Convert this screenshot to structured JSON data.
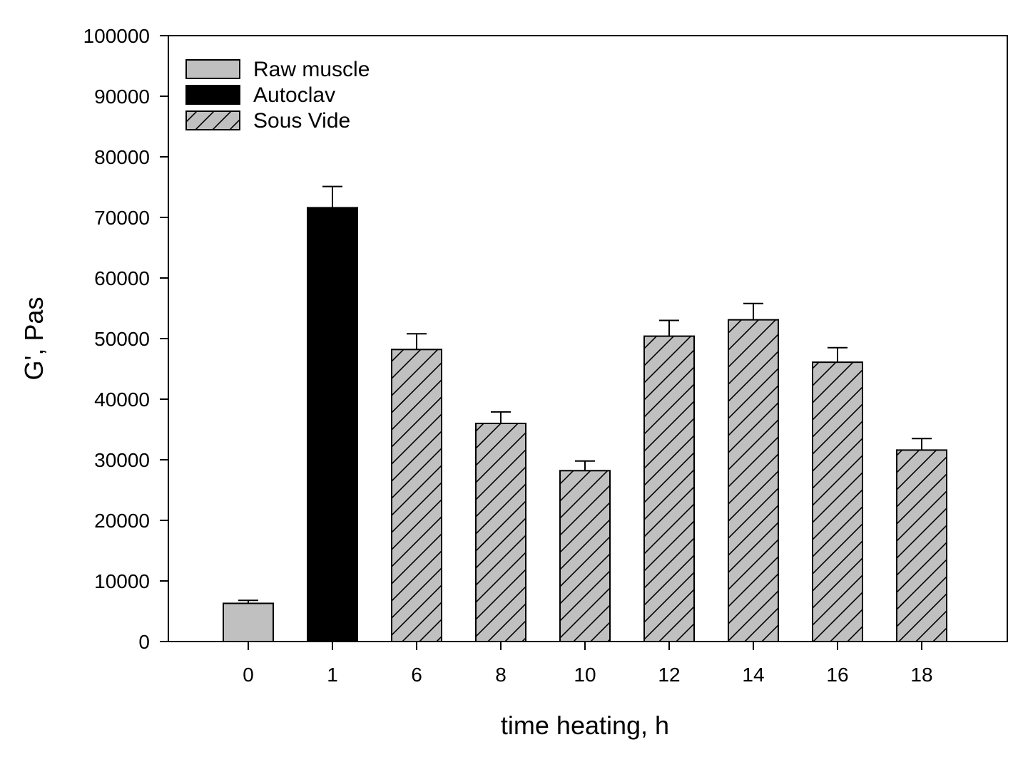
{
  "chart_data": {
    "type": "bar",
    "title": "",
    "xlabel": "time heating, h",
    "ylabel": "G', Pas",
    "ylim": [
      0,
      100000
    ],
    "yticks": [
      0,
      10000,
      20000,
      30000,
      40000,
      50000,
      60000,
      70000,
      80000,
      90000,
      100000
    ],
    "grid": false,
    "legend_position": "top-left",
    "categories": [
      "0",
      "1",
      "6",
      "8",
      "10",
      "12",
      "14",
      "16",
      "18"
    ],
    "series": [
      {
        "name": "Raw muscle",
        "fill": "solid",
        "color": "#c0c0c0"
      },
      {
        "name": "Autoclav",
        "fill": "solid",
        "color": "#000000"
      },
      {
        "name": "Sous Vide",
        "fill": "hatched",
        "color": "#c0c0c0"
      }
    ],
    "bars": [
      {
        "category": "0",
        "series": "Raw muscle",
        "value": 6300,
        "error": 500
      },
      {
        "category": "1",
        "series": "Autoclav",
        "value": 71600,
        "error": 3500
      },
      {
        "category": "6",
        "series": "Sous Vide",
        "value": 48200,
        "error": 2600
      },
      {
        "category": "8",
        "series": "Sous Vide",
        "value": 36000,
        "error": 1900
      },
      {
        "category": "10",
        "series": "Sous Vide",
        "value": 28200,
        "error": 1600
      },
      {
        "category": "12",
        "series": "Sous Vide",
        "value": 50400,
        "error": 2600
      },
      {
        "category": "14",
        "series": "Sous Vide",
        "value": 53100,
        "error": 2700
      },
      {
        "category": "16",
        "series": "Sous Vide",
        "value": 46100,
        "error": 2400
      },
      {
        "category": "18",
        "series": "Sous Vide",
        "value": 31600,
        "error": 1900
      }
    ]
  }
}
